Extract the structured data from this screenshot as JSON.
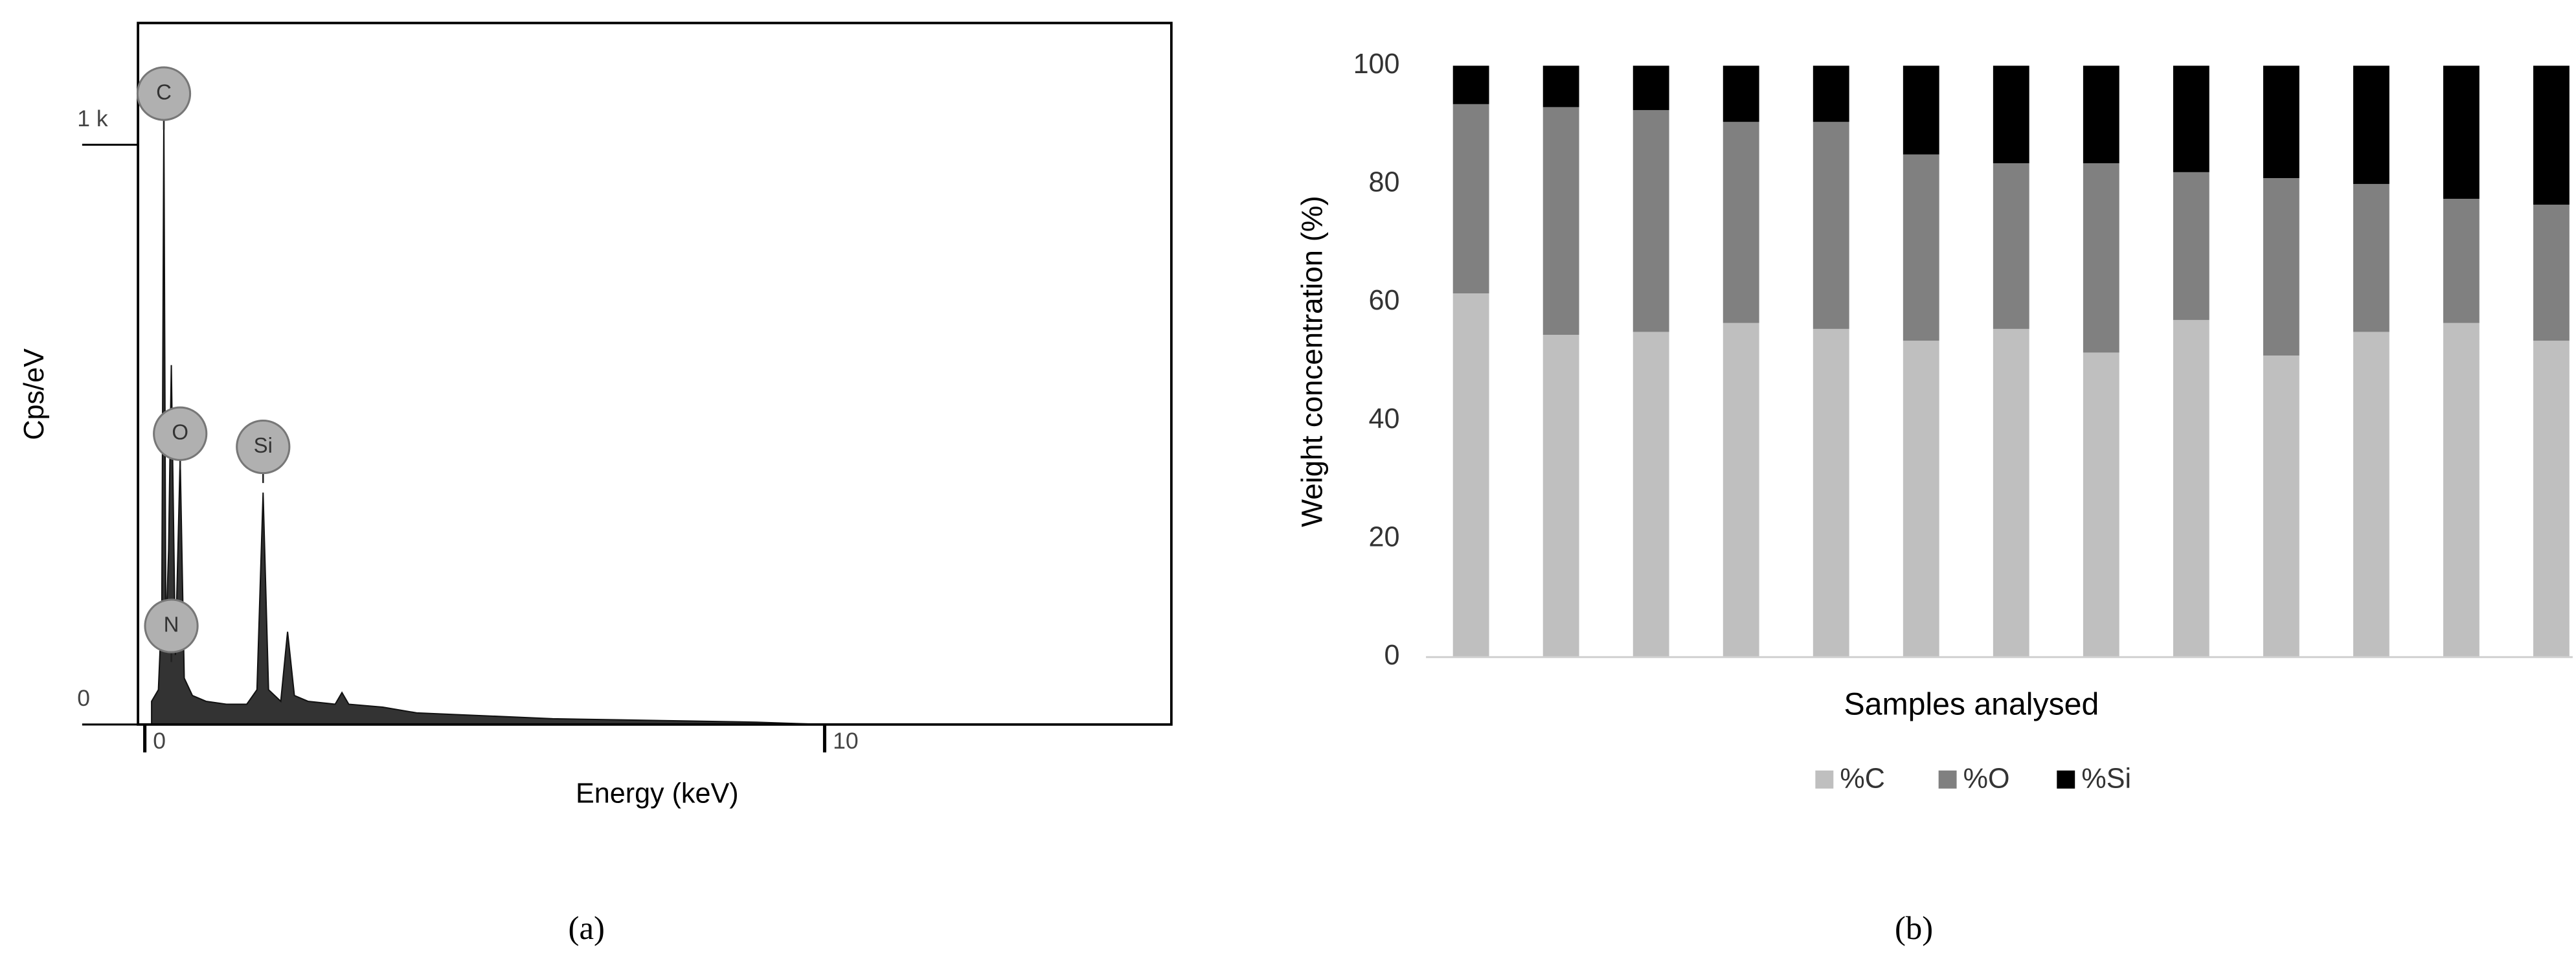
{
  "chart_data": [
    {
      "type": "area",
      "x_label": "Energy (keV)",
      "y_label": "Cps/eV",
      "caption": "(a)",
      "color": "#333333",
      "x": [
        0.1,
        0.2,
        0.25,
        0.28,
        0.31,
        0.35,
        0.39,
        0.45,
        0.52,
        0.58,
        0.7,
        0.9,
        1.2,
        1.5,
        1.65,
        1.74,
        1.82,
        2.0,
        2.1,
        2.2,
        2.4,
        2.8,
        2.9,
        3.0,
        3.5,
        4,
        5,
        6,
        7,
        8,
        9,
        10
      ],
      "values": [
        40,
        60,
        200,
        1050,
        150,
        300,
        620,
        120,
        460,
        80,
        50,
        40,
        35,
        35,
        60,
        400,
        60,
        40,
        160,
        50,
        40,
        35,
        55,
        35,
        30,
        20,
        15,
        10,
        8,
        6,
        4,
        0
      ],
      "xlim": [
        -0.1,
        15.1
      ],
      "ylim": [
        0,
        1210
      ],
      "xticks": [
        0,
        10
      ],
      "yticks": [
        0,
        {
          "value": 1000,
          "label": "1 k"
        }
      ],
      "annotations": [
        {
          "text": "C",
          "x": 0.28
        },
        {
          "text": "O",
          "x": 0.52
        },
        {
          "text": "Si",
          "x": 1.74
        },
        {
          "text": "N",
          "x": 0.39
        }
      ]
    },
    {
      "type": "stacked_bar",
      "x_label": "Samples analysed",
      "y_label": "Weight concentration (%)",
      "caption": "(b)",
      "categories": [
        null,
        null,
        null,
        null,
        null,
        null,
        null,
        null,
        null,
        null,
        null,
        null,
        null
      ],
      "series": [
        {
          "name": "%C",
          "color": "#bfbfbf",
          "values": [
            61.5,
            54.5,
            55,
            56.5,
            55.5,
            53.5,
            55.5,
            51.5,
            57,
            51,
            55,
            56.5,
            53.5
          ]
        },
        {
          "name": "%O",
          "color": "#808080",
          "values": [
            32,
            38.5,
            37.5,
            34,
            35,
            31.5,
            28,
            32,
            25,
            30,
            25,
            21,
            23
          ]
        },
        {
          "name": "%Si",
          "color": "#000000",
          "values": [
            6.5,
            7,
            7.5,
            9.5,
            9.5,
            15,
            16.5,
            16.5,
            18,
            19,
            20,
            22.5,
            23.5
          ]
        }
      ],
      "ylim": [
        0,
        100
      ],
      "yticks": [
        0,
        20,
        40,
        60,
        80,
        100
      ],
      "legend": "bottom"
    }
  ]
}
